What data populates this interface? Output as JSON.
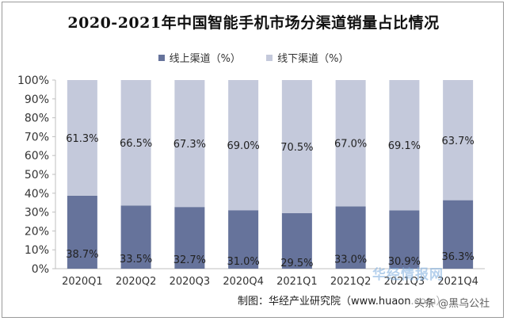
{
  "colors": {
    "online": "#66739b",
    "offline": "#c4c9db",
    "grid": "#d9d9d9",
    "axis_text": "#333333"
  },
  "chart_data": {
    "type": "bar",
    "stacked": true,
    "title": "2020-2021年中国智能手机市场分渠道销量占比情况",
    "categories": [
      "2020Q1",
      "2020Q2",
      "2020Q3",
      "2020Q4",
      "2021Q1",
      "2021Q2",
      "2021Q3",
      "2021Q4"
    ],
    "series": [
      {
        "name": "线上渠道（%）",
        "values": [
          38.7,
          33.5,
          32.7,
          31.0,
          29.5,
          33.0,
          30.9,
          36.3
        ]
      },
      {
        "name": "线下渠道（%）",
        "values": [
          61.3,
          66.5,
          67.3,
          69.0,
          70.5,
          67.0,
          69.1,
          63.7
        ]
      }
    ],
    "ylim": [
      0,
      100
    ],
    "yticks": [
      "0%",
      "10%",
      "20%",
      "30%",
      "40%",
      "50%",
      "60%",
      "70%",
      "80%",
      "90%",
      "100%"
    ],
    "grid": false,
    "legend": "top"
  },
  "source": "制图：华经产业研究院（www.huaon.com）",
  "watermark": {
    "logo": "华经情报网",
    "tag": "头条 @黑乌公社"
  }
}
